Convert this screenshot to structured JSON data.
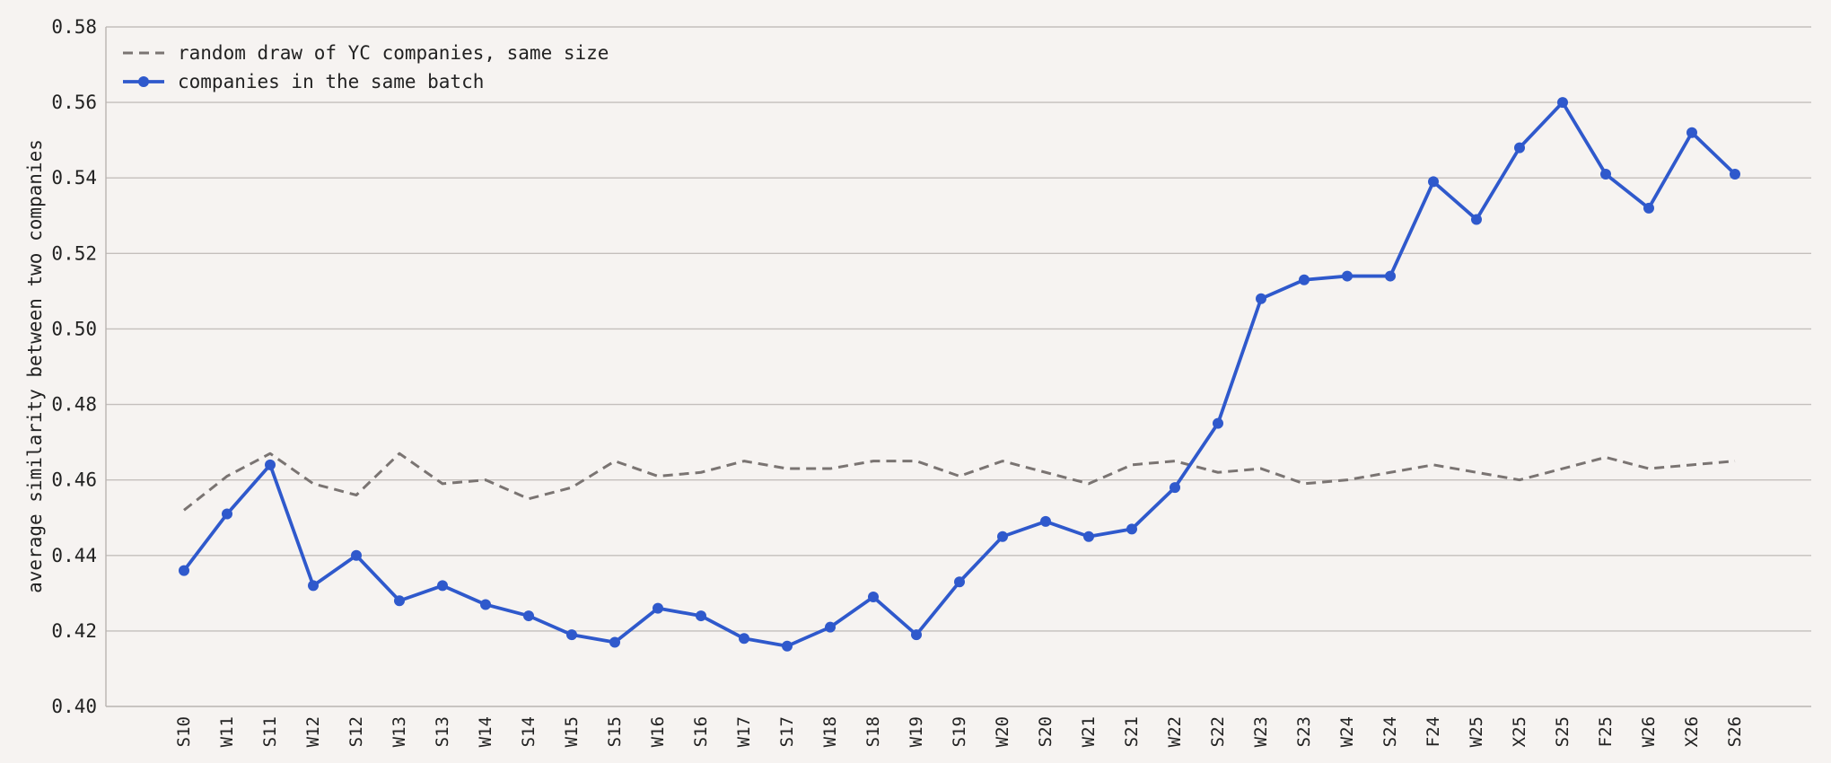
{
  "chart_data": {
    "type": "line",
    "ylabel": "average similarity between two companies",
    "ylim": [
      0.4,
      0.58
    ],
    "yticks": [
      "0.40",
      "0.42",
      "0.44",
      "0.46",
      "0.48",
      "0.50",
      "0.52",
      "0.54",
      "0.56",
      "0.58"
    ],
    "grid": "horizontal",
    "legend_position": "top-left",
    "categories": [
      "S10",
      "W11",
      "S11",
      "W12",
      "S12",
      "W13",
      "S13",
      "W14",
      "S14",
      "W15",
      "S15",
      "W16",
      "S16",
      "W17",
      "S17",
      "W18",
      "S18",
      "W19",
      "S19",
      "W20",
      "S20",
      "W21",
      "S21",
      "W22",
      "S22",
      "W23",
      "S23",
      "W24",
      "S24",
      "F24",
      "W25",
      "X25",
      "S25",
      "F25",
      "W26",
      "X26",
      "S26"
    ],
    "series": [
      {
        "name": "random draw of YC companies, same size",
        "style": "dashed",
        "color": "#7a7472",
        "values": [
          0.452,
          0.461,
          0.467,
          0.459,
          0.456,
          0.467,
          0.459,
          0.46,
          0.455,
          0.458,
          0.465,
          0.461,
          0.462,
          0.465,
          0.463,
          0.463,
          0.465,
          0.465,
          0.461,
          0.465,
          0.462,
          0.459,
          0.464,
          0.465,
          0.462,
          0.463,
          0.459,
          0.46,
          0.462,
          0.464,
          0.462,
          0.46,
          0.463,
          0.466,
          0.463,
          0.464,
          0.465
        ]
      },
      {
        "name": "companies in the same batch",
        "style": "solid-markers",
        "color": "#2f59cc",
        "values": [
          0.436,
          0.451,
          0.464,
          0.432,
          0.44,
          0.428,
          0.432,
          0.427,
          0.424,
          0.419,
          0.417,
          0.426,
          0.424,
          0.418,
          0.416,
          0.421,
          0.429,
          0.419,
          0.433,
          0.445,
          0.449,
          0.445,
          0.447,
          0.458,
          0.475,
          0.508,
          0.513,
          0.514,
          0.514,
          0.539,
          0.529,
          0.548,
          0.56,
          0.541,
          0.532,
          0.552,
          0.541
        ]
      }
    ]
  }
}
